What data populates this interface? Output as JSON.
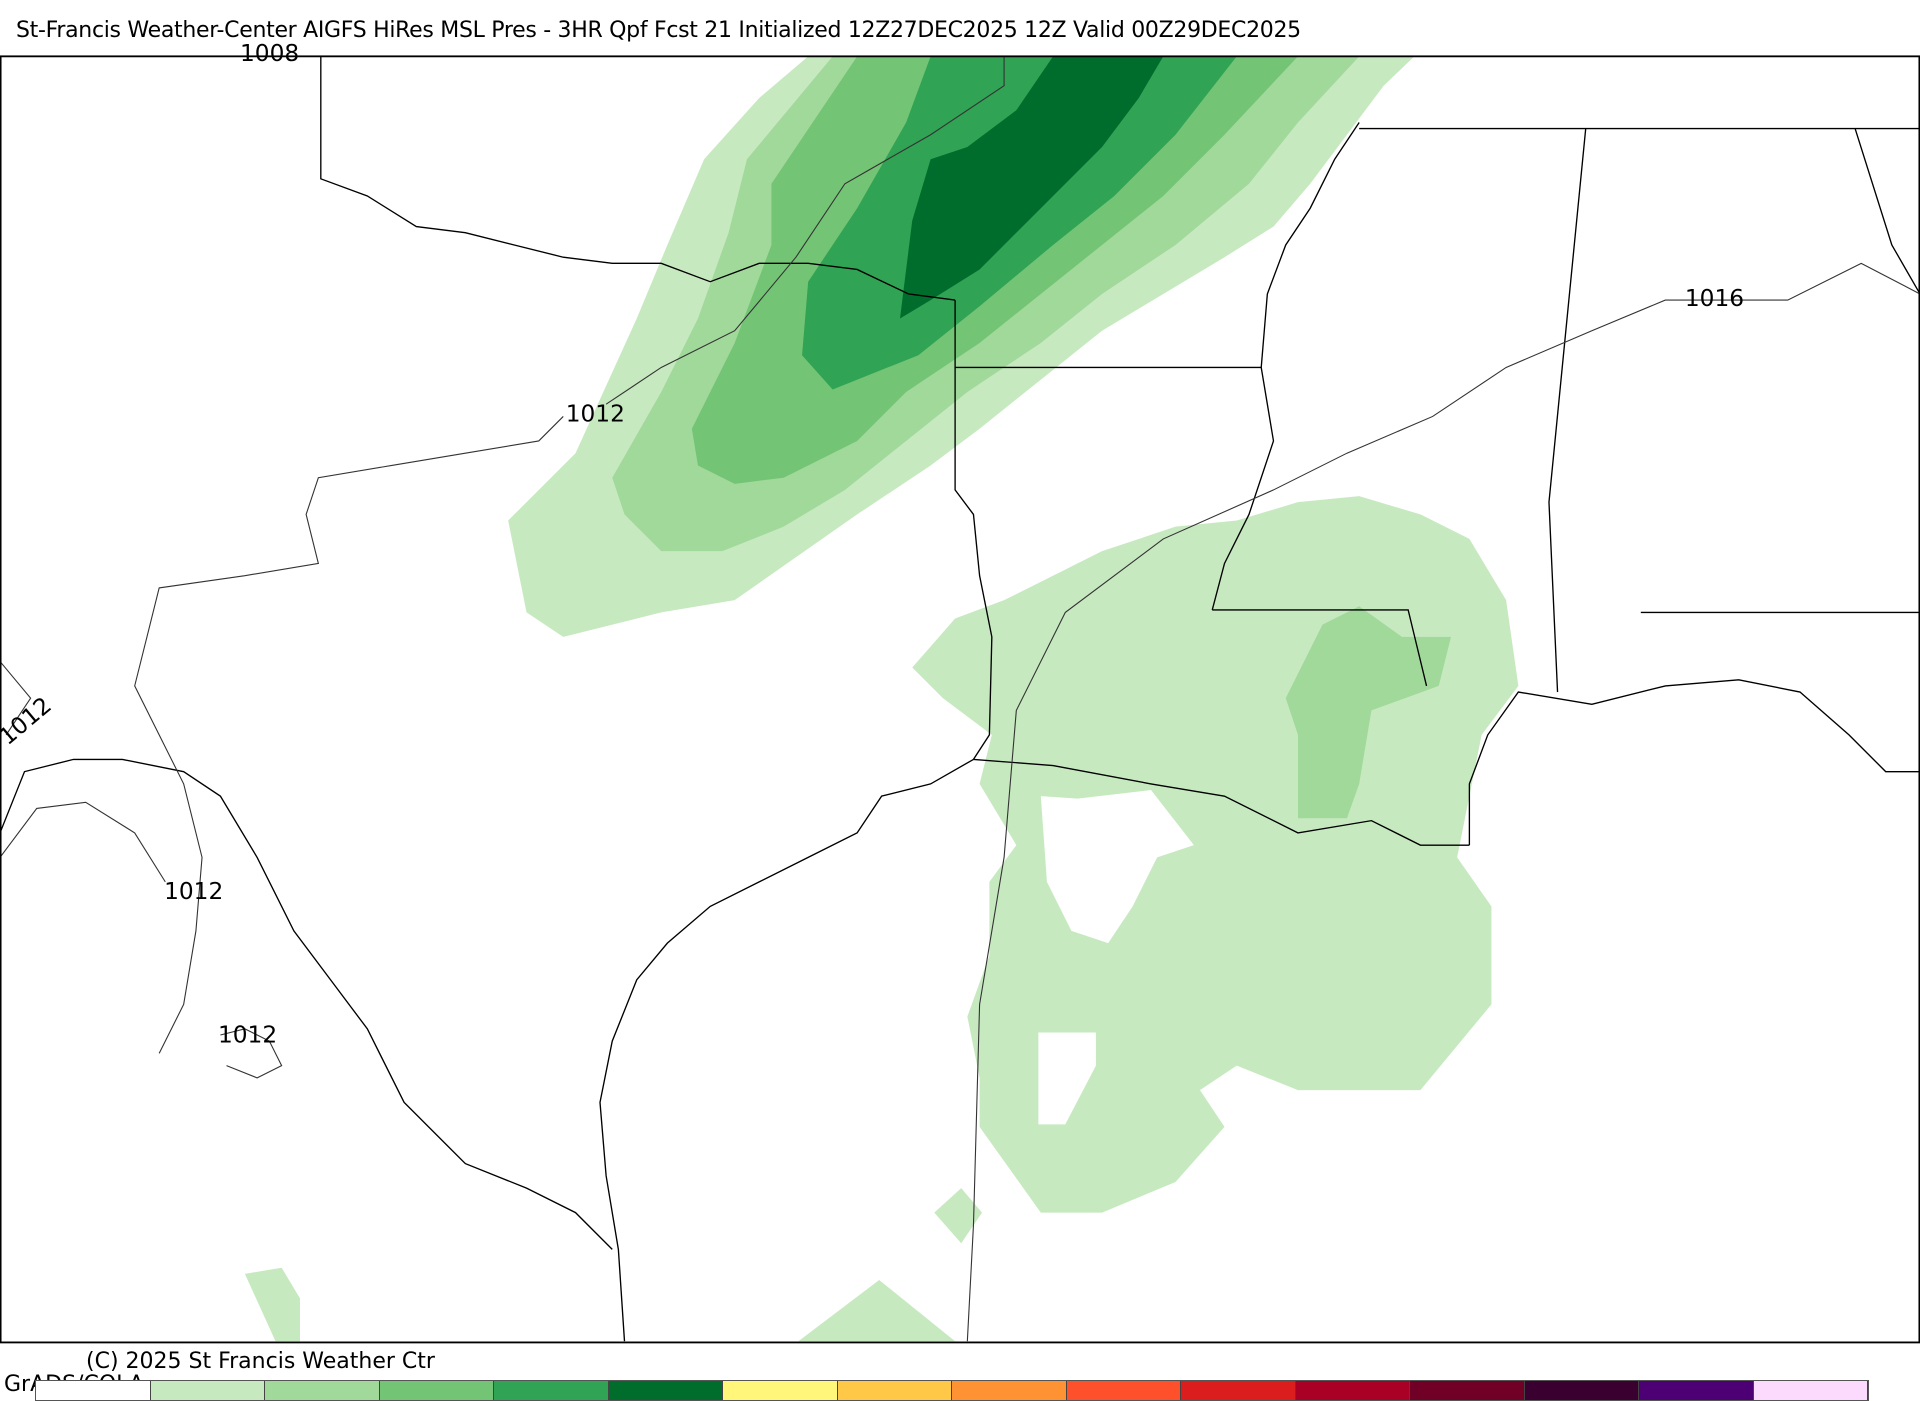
{
  "title": "St-Francis Weather-Center AIGFS HiRes MSL Pres - 3HR Qpf Fcst 21 Initialized 12Z27DEC2025 12Z Valid 00Z29DEC2025",
  "footer": {
    "copyright": "(C) 2025 St Francis Weather Ctr",
    "software": "GrADS/COLA"
  },
  "isobar_labels": [
    "1012",
    "1012",
    "1012",
    "1012",
    "1016",
    "1008"
  ],
  "legend": {
    "colors": [
      "#ffffff",
      "#c7e9c0",
      "#a1d99b",
      "#74c476",
      "#31a354",
      "#006d2c",
      "#fff67a",
      "#ffc847",
      "#ff9233",
      "#ff502c",
      "#db1d1d",
      "#a90025",
      "#710026",
      "#3a0030",
      "#4c0073",
      "#fcdafe"
    ]
  },
  "precip_colors": {
    "level1": "#c7e9c0",
    "level2": "#a1d99b",
    "level3": "#74c476",
    "level4": "#31a354",
    "level5": "#006d2c"
  }
}
